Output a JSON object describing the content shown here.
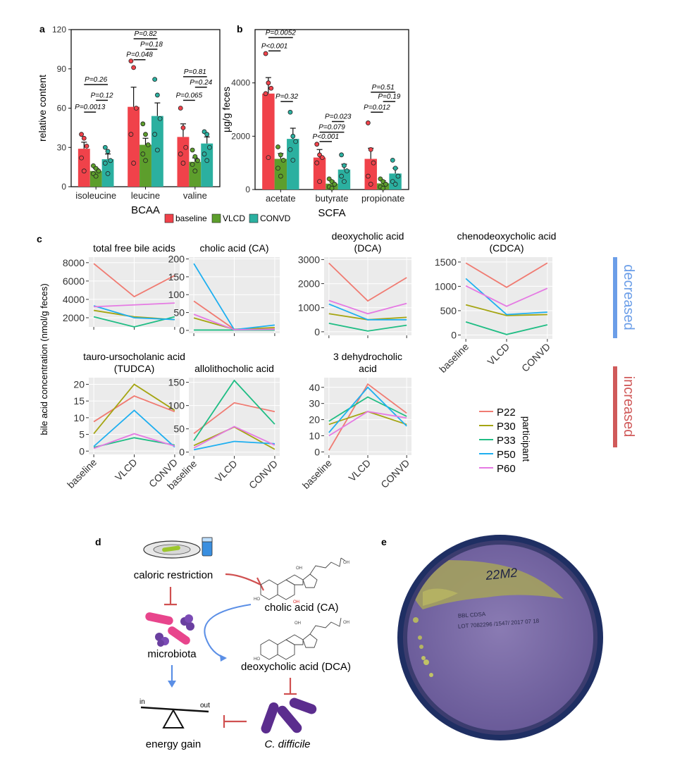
{
  "colors": {
    "baseline": "#f0424a",
    "VLCD": "#5d9e2c",
    "CONVD": "#2bb0a0",
    "P22": "#f07b72",
    "P30": "#a5a512",
    "P33": "#1fbd84",
    "P50": "#1eaff0",
    "P60": "#e57ae3",
    "decreased": "#6b9ee8",
    "increased": "#d05a5a"
  },
  "labels": {
    "panel_a": "a",
    "panel_b": "b",
    "panel_c": "c",
    "panel_d": "d",
    "panel_e": "e",
    "decreased": "decreased",
    "increased": "increased",
    "c_ylabel": "bile acid concentration (nmol/g feces)",
    "participant": "participant"
  },
  "legend_ab": [
    "baseline",
    "VLCD",
    "CONVD"
  ],
  "legend_c": [
    "P22",
    "P30",
    "P33",
    "P50",
    "P60"
  ],
  "diagram": {
    "caloric_restriction": "caloric restriction",
    "microbiota": "microbiota",
    "cholic_acid": "cholic acid (CA)",
    "deoxycholic_acid": "deoxycholic acid (DCA)",
    "energy_gain": "energy gain",
    "c_difficile": "C. difficile",
    "scale_in": "in",
    "scale_out": "out"
  },
  "plate": {
    "handwriting": "22M2",
    "print_line1": "BBL CDSA",
    "print_line2": "LOT 7082296 /1547/ 2017 07 18"
  },
  "chart_data": [
    {
      "id": "a",
      "type": "bar",
      "title": "",
      "xlabel": "BCAA",
      "ylabel": "relative content",
      "ylim": [
        0,
        120
      ],
      "yticks": [
        "0",
        "30",
        "60",
        "90",
        "120"
      ],
      "categories": [
        "isoleucine",
        "leucine",
        "valine"
      ],
      "series": [
        {
          "name": "baseline",
          "values": [
            29,
            61,
            38
          ],
          "err": [
            5,
            15,
            10
          ]
        },
        {
          "name": "VLCD",
          "values": [
            12,
            32,
            19
          ],
          "err": [
            2,
            5,
            3
          ]
        },
        {
          "name": "CONVD",
          "values": [
            21,
            54,
            33
          ],
          "err": [
            4,
            10,
            5
          ]
        }
      ],
      "points": [
        [
          [
            40,
            37,
            31,
            22,
            12
          ],
          [
            96,
            91,
            60,
            40,
            18
          ],
          [
            60,
            45,
            30,
            25,
            18
          ]
        ],
        [
          [
            16,
            14,
            12,
            10,
            8
          ],
          [
            48,
            40,
            32,
            25,
            20
          ],
          [
            28,
            23,
            20,
            17,
            12
          ]
        ],
        [
          [
            30,
            27,
            20,
            18,
            10
          ],
          [
            82,
            70,
            52,
            40,
            28
          ],
          [
            42,
            40,
            30,
            25,
            20
          ]
        ]
      ],
      "pvalues": [
        {
          "text": "P=0.26",
          "cat": 0,
          "from": 0,
          "to": 2,
          "y": 78
        },
        {
          "text": "P=0.12",
          "cat": 0,
          "from": 1,
          "to": 2,
          "y": 66
        },
        {
          "text": "P=0.0013",
          "cat": 0,
          "from": 0,
          "to": 1,
          "y": 57
        },
        {
          "text": "P=0.82",
          "cat": 1,
          "from": 0,
          "to": 2,
          "y": 113
        },
        {
          "text": "P=0.18",
          "cat": 1,
          "from": 1,
          "to": 2,
          "y": 105
        },
        {
          "text": "P=0.048",
          "cat": 1,
          "from": 0,
          "to": 1,
          "y": 97
        },
        {
          "text": "P=0.81",
          "cat": 2,
          "from": 0,
          "to": 2,
          "y": 84
        },
        {
          "text": "P=0.24",
          "cat": 2,
          "from": 1,
          "to": 2,
          "y": 76
        },
        {
          "text": "P=0.065",
          "cat": 2,
          "from": 0,
          "to": 1,
          "y": 66
        }
      ]
    },
    {
      "id": "b",
      "type": "bar",
      "title": "",
      "xlabel": "SCFA",
      "ylabel": "µg/g feces",
      "ylim": [
        0,
        6000
      ],
      "yticks": [
        "0",
        "2000",
        "4000"
      ],
      "categories": [
        "acetate",
        "butyrate",
        "propionate"
      ],
      "series": [
        {
          "name": "baseline",
          "values": [
            3600,
            1200,
            1150
          ],
          "err": [
            600,
            300,
            400
          ]
        },
        {
          "name": "VLCD",
          "values": [
            1150,
            220,
            230
          ],
          "err": [
            200,
            100,
            100
          ]
        },
        {
          "name": "CONVD",
          "values": [
            1900,
            750,
            600
          ],
          "err": [
            400,
            200,
            200
          ]
        }
      ],
      "points": [
        [
          [
            5100,
            4000,
            3800,
            3600,
            1200
          ],
          [
            1700,
            1300,
            1200,
            1000,
            300
          ],
          [
            2500,
            1500,
            1000,
            500,
            200
          ]
        ],
        [
          [
            1600,
            1300,
            1100,
            800,
            500
          ],
          [
            400,
            300,
            200,
            100,
            50
          ],
          [
            400,
            300,
            200,
            100,
            50
          ]
        ],
        [
          [
            2900,
            2000,
            1800,
            1500,
            1100
          ],
          [
            1300,
            900,
            700,
            500,
            300
          ],
          [
            1100,
            800,
            500,
            300,
            200
          ]
        ]
      ],
      "pvalues": [
        {
          "text": "P=0.0052",
          "cat": 0,
          "from": 0,
          "to": 2,
          "y": 5700
        },
        {
          "text": "P<0.001",
          "cat": 0,
          "from": 0,
          "to": 1,
          "y": 5200
        },
        {
          "text": "P=0.32",
          "cat": 0,
          "from": 1,
          "to": 2,
          "y": 3300
        },
        {
          "text": "P=0.023",
          "cat": 1,
          "from": 1,
          "to": 2,
          "y": 2550
        },
        {
          "text": "P=0.079",
          "cat": 1,
          "from": 0,
          "to": 2,
          "y": 2150
        },
        {
          "text": "P<0.001",
          "cat": 1,
          "from": 0,
          "to": 1,
          "y": 1800
        },
        {
          "text": "P=0.51",
          "cat": 2,
          "from": 0,
          "to": 2,
          "y": 3650
        },
        {
          "text": "P=0.19",
          "cat": 2,
          "from": 1,
          "to": 2,
          "y": 3300
        },
        {
          "text": "P=0.012",
          "cat": 2,
          "from": 0,
          "to": 1,
          "y": 2900
        }
      ]
    },
    {
      "id": "c1",
      "type": "line",
      "title": "total free bile acids",
      "x": [
        "baseline",
        "VLCD",
        "CONVD"
      ],
      "ylim": [
        1000,
        8600
      ],
      "yticks": [
        2000,
        4000,
        6000,
        8000
      ],
      "show_xticks": false,
      "series": [
        {
          "name": "P22",
          "values": [
            7900,
            4300,
            6600
          ]
        },
        {
          "name": "P30",
          "values": [
            2800,
            2100,
            1800
          ]
        },
        {
          "name": "P33",
          "values": [
            2100,
            1000,
            2100
          ]
        },
        {
          "name": "P50",
          "values": [
            3300,
            2000,
            1800
          ]
        },
        {
          "name": "P60",
          "values": [
            3200,
            3400,
            3600
          ]
        }
      ]
    },
    {
      "id": "c2",
      "type": "line",
      "title": "cholic acid (CA)",
      "x": [
        "baseline",
        "VLCD",
        "CONVD"
      ],
      "ylim": [
        -8,
        205
      ],
      "yticks": [
        0,
        50,
        100,
        150,
        200
      ],
      "show_xticks": false,
      "series": [
        {
          "name": "P22",
          "values": [
            82,
            3,
            4
          ]
        },
        {
          "name": "P30",
          "values": [
            35,
            3,
            8
          ]
        },
        {
          "name": "P33",
          "values": [
            1,
            1,
            1
          ]
        },
        {
          "name": "P50",
          "values": [
            187,
            2,
            15
          ]
        },
        {
          "name": "P60",
          "values": [
            45,
            2,
            3
          ]
        }
      ]
    },
    {
      "id": "c3",
      "type": "line",
      "title": "deoxycholic acid\n(DCA)",
      "x": [
        "baseline",
        "VLCD",
        "CONVD"
      ],
      "ylim": [
        -150,
        3100
      ],
      "yticks": [
        0,
        1000,
        2000,
        3000
      ],
      "show_xticks": false,
      "series": [
        {
          "name": "P22",
          "values": [
            2850,
            1280,
            2250
          ]
        },
        {
          "name": "P30",
          "values": [
            750,
            500,
            600
          ]
        },
        {
          "name": "P33",
          "values": [
            350,
            30,
            270
          ]
        },
        {
          "name": "P50",
          "values": [
            1150,
            500,
            500
          ]
        },
        {
          "name": "P60",
          "values": [
            1300,
            750,
            1180
          ]
        }
      ]
    },
    {
      "id": "c4",
      "type": "line",
      "title": "chenodeoxycholic  acid\n(CDCA)",
      "x": [
        "baseline",
        "VLCD",
        "CONVD"
      ],
      "ylim": [
        -80,
        1600
      ],
      "yticks": [
        0,
        500,
        1000,
        1500
      ],
      "show_xticks": true,
      "series": [
        {
          "name": "P22",
          "values": [
            1480,
            980,
            1480
          ]
        },
        {
          "name": "P30",
          "values": [
            620,
            400,
            420
          ]
        },
        {
          "name": "P33",
          "values": [
            270,
            10,
            210
          ]
        },
        {
          "name": "P50",
          "values": [
            1160,
            420,
            470
          ]
        },
        {
          "name": "P60",
          "values": [
            1010,
            590,
            960
          ]
        }
      ]
    },
    {
      "id": "c5",
      "type": "line",
      "title": "tauro-ursocholanic acid\n(TUDCA)",
      "x": [
        "baseline",
        "VLCD",
        "CONVD"
      ],
      "ylim": [
        -1,
        22
      ],
      "yticks": [
        0,
        5,
        10,
        15,
        20
      ],
      "show_xticks": true,
      "series": [
        {
          "name": "P22",
          "values": [
            8.8,
            16.5,
            11.8
          ]
        },
        {
          "name": "P30",
          "values": [
            5.2,
            20,
            12.2
          ]
        },
        {
          "name": "P33",
          "values": [
            1.1,
            4,
            1.8
          ]
        },
        {
          "name": "P50",
          "values": [
            1.4,
            12.2,
            1.2
          ]
        },
        {
          "name": "P60",
          "values": [
            0.8,
            5.2,
            1.5
          ]
        }
      ]
    },
    {
      "id": "c6",
      "type": "line",
      "title": "allolithocholic acid",
      "x": [
        "baseline",
        "VLCD",
        "CONVD"
      ],
      "ylim": [
        -8,
        160
      ],
      "yticks": [
        0,
        50,
        100,
        150
      ],
      "show_xticks": true,
      "series": [
        {
          "name": "P22",
          "values": [
            40,
            106,
            87
          ]
        },
        {
          "name": "P30",
          "values": [
            14,
            54,
            6
          ]
        },
        {
          "name": "P33",
          "values": [
            25,
            154,
            60
          ]
        },
        {
          "name": "P50",
          "values": [
            5,
            23,
            18
          ]
        },
        {
          "name": "P60",
          "values": [
            9,
            55,
            15
          ]
        }
      ]
    },
    {
      "id": "c7",
      "type": "line",
      "title": "3  dehydrocholic\nacid",
      "x": [
        "baseline",
        "VLCD",
        "CONVD"
      ],
      "ylim": [
        -2,
        46
      ],
      "yticks": [
        0,
        10,
        20,
        30,
        40
      ],
      "show_xticks": true,
      "series": [
        {
          "name": "P22",
          "values": [
            1,
            42,
            24
          ]
        },
        {
          "name": "P30",
          "values": [
            17,
            25,
            17
          ]
        },
        {
          "name": "P33",
          "values": [
            19,
            34,
            22
          ]
        },
        {
          "name": "P50",
          "values": [
            12,
            40,
            16
          ]
        },
        {
          "name": "P60",
          "values": [
            10,
            25,
            21
          ]
        }
      ]
    }
  ]
}
